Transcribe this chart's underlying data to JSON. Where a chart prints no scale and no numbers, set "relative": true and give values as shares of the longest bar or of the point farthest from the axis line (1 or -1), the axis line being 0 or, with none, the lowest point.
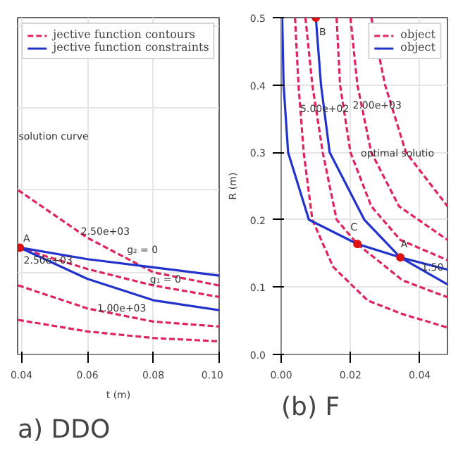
{
  "chart_data": [
    {
      "type": "line",
      "title": "a) DDO",
      "xlabel": "t (m)",
      "relative": true,
      "xlim": [
        0.0388,
        0.1
      ],
      "xticks": [
        {
          "value": 0.04,
          "label": "0.04"
        },
        {
          "value": 0.06,
          "label": "0.06"
        },
        {
          "value": 0.08,
          "label": "0.08"
        },
        {
          "value": 0.1,
          "label": "0.10"
        }
      ],
      "tick_labels": "x",
      "grid": true,
      "legend": "top",
      "marker": "none",
      "series": [
        {
          "name": "jective function contours",
          "color": "#e0245e",
          "line_style": "dashed",
          "x": [
            0.039,
            0.06,
            0.08,
            0.1
          ],
          "values": [
            1,
            0.71,
            0.5,
            0.42
          ]
        },
        {
          "color": "#e0245e",
          "line_style": "dashed",
          "x": [
            0.039,
            0.06,
            0.08,
            0.1
          ],
          "values": [
            0.65,
            0.52,
            0.42,
            0.35
          ]
        },
        {
          "color": "#e0245e",
          "line_style": "dashed",
          "x": [
            0.039,
            0.06,
            0.08,
            0.1
          ],
          "values": [
            0.42,
            0.28,
            0.2,
            0.17
          ]
        },
        {
          "color": "#e0245e",
          "line_style": "dashed",
          "x": [
            0.039,
            0.06,
            0.08,
            0.1
          ],
          "values": [
            0.21,
            0.14,
            0.1,
            0.08
          ]
        },
        {
          "name": "jective function constraints",
          "color": "#2233cc",
          "line_style": "solid",
          "x": [
            0.0395,
            0.06,
            0.08,
            0.1
          ],
          "values": [
            0.65,
            0.58,
            0.53,
            0.48
          ]
        },
        {
          "color": "#2233cc",
          "line_style": "solid",
          "x": [
            0.0395,
            0.06,
            0.08,
            0.1
          ],
          "values": [
            0.65,
            0.46,
            0.33,
            0.27
          ]
        },
        {
          "type": "scatter",
          "marker": "circle",
          "color": "#dd1111",
          "x": [
            0.0395
          ],
          "values": [
            0.65
          ]
        }
      ],
      "annotations": [
        "solution curve",
        {
          "text": "A",
          "x": 0.0405,
          "y": 0.67
        },
        {
          "text": "2.50e+03",
          "x": 0.058,
          "y": 0.73
        },
        "2.50e+03",
        {
          "text": "1.00e+03",
          "x": 0.063,
          "y": 0.26
        },
        {
          "text": "g₂ = 0",
          "x": 0.072,
          "y": 0.6
        },
        {
          "text": "g₁ = 0",
          "x": 0.079,
          "y": 0.42
        }
      ]
    },
    {
      "type": "line",
      "title": "(b) F",
      "ylabel": "R (m)",
      "xlim": [
        0,
        0.048
      ],
      "ylim": [
        0,
        0.5
      ],
      "xticks": [
        {
          "value": 0,
          "label": "0.00"
        },
        {
          "value": 0.02,
          "label": "0.02"
        },
        {
          "value": 0.04,
          "label": "0.04"
        }
      ],
      "yticks": [
        {
          "value": 0,
          "label": "0.0"
        },
        0.1,
        0.2,
        0.3,
        0.4,
        0.5
      ],
      "grid": true,
      "legend": "top right",
      "marker": "none",
      "series": [
        {
          "name": "object",
          "color": "#e0245e",
          "line_style": "dashed",
          "x": [
            0.004,
            0.005,
            0.0065,
            0.009,
            0.015,
            0.025,
            0.035,
            0.048
          ],
          "values": [
            0.5,
            0.4,
            0.3,
            0.2,
            0.13,
            0.08,
            0.06,
            0.04
          ]
        },
        {
          "color": "#e0245e",
          "line_style": "dashed",
          "x": [
            0.007,
            0.009,
            0.012,
            0.016,
            0.022,
            0.035,
            0.048
          ],
          "values": [
            0.5,
            0.4,
            0.3,
            0.2,
            0.164,
            0.11,
            0.085
          ]
        },
        {
          "color": "#e0245e",
          "line_style": "dashed",
          "x": [
            0.016,
            0.017,
            0.02,
            0.026,
            0.0344,
            0.048
          ],
          "values": [
            0.5,
            0.4,
            0.3,
            0.22,
            0.17,
            0.14
          ]
        },
        {
          "color": "#e0245e",
          "line_style": "dashed",
          "x": [
            0.02,
            0.022,
            0.026,
            0.034,
            0.048
          ],
          "values": [
            0.5,
            0.4,
            0.3,
            0.22,
            0.17
          ]
        },
        {
          "color": "#e0245e",
          "line_style": "dashed",
          "x": [
            0.026,
            0.03,
            0.036,
            0.048
          ],
          "values": [
            0.5,
            0.4,
            0.3,
            0.22
          ]
        },
        {
          "name": "object",
          "color": "#2233cc",
          "line_style": "solid",
          "x": [
            0.0003,
            0.0007,
            0.002,
            0.008,
            0.022,
            0.0344,
            0.048
          ],
          "values": [
            0.5,
            0.4,
            0.3,
            0.2,
            0.164,
            0.144,
            0.126
          ]
        },
        {
          "color": "#2233cc",
          "line_style": "solid",
          "x": [
            0.01,
            0.0115,
            0.014,
            0.024,
            0.0344,
            0.048
          ],
          "values": [
            0.5,
            0.4,
            0.3,
            0.2,
            0.144,
            0.104
          ]
        },
        {
          "type": "scatter",
          "marker": "circle",
          "color": "#dd1111",
          "x": [
            0.01,
            0.022,
            0.0344
          ],
          "values": [
            0.5,
            0.164,
            0.144
          ]
        }
      ],
      "annotations": [
        {
          "text": "B",
          "x": 0.011,
          "y": 0.47
        },
        {
          "text": "C",
          "x": 0.02,
          "y": 0.18
        },
        {
          "text": "A",
          "x": 0.0345,
          "y": 0.155
        },
        {
          "text": "optimal solutio",
          "x": 0.023,
          "y": 0.29
        },
        {
          "text": "5.00e+02",
          "x": 0.0055,
          "y": 0.36
        },
        "2.00e+03",
        {
          "text": "1.50",
          "x": 0.0405,
          "y": 0.125
        }
      ]
    }
  ]
}
